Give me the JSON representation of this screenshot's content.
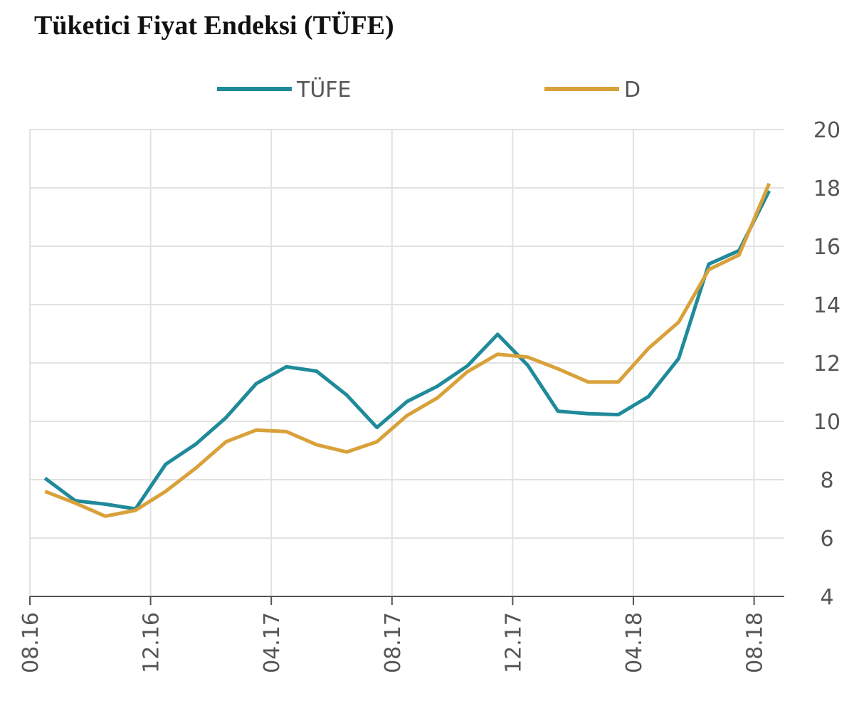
{
  "chart_data": {
    "type": "line",
    "title": "Tüketici Fiyat Endeksi (TÜFE)",
    "categories": [
      "08.16",
      null,
      null,
      null,
      "12.16",
      null,
      null,
      null,
      "04.17",
      null,
      null,
      null,
      "08.17",
      null,
      null,
      null,
      "12.17",
      null,
      null,
      null,
      "04.18",
      null,
      null,
      null,
      "08.18"
    ],
    "series": [
      {
        "name": "TÜFE",
        "color": "#1f8a9a",
        "values": [
          8.05,
          7.28,
          7.16,
          7.0,
          8.53,
          9.22,
          10.13,
          11.29,
          11.87,
          11.72,
          10.9,
          9.79,
          10.68,
          11.2,
          11.9,
          12.98,
          11.92,
          10.35,
          10.26,
          10.23,
          10.85,
          12.15,
          15.39,
          15.85,
          17.9
        ]
      },
      {
        "name": "D",
        "color": "#d9a13a",
        "values": [
          7.6,
          7.2,
          6.75,
          6.95,
          7.6,
          8.4,
          9.3,
          9.7,
          9.65,
          9.2,
          8.95,
          9.3,
          10.2,
          10.8,
          11.7,
          12.3,
          12.2,
          11.8,
          11.35,
          11.35,
          12.5,
          13.4,
          15.2,
          15.7,
          18.15
        ]
      }
    ],
    "ylim": [
      4,
      20
    ],
    "yticks": [
      4,
      6,
      8,
      10,
      12,
      14,
      16,
      18,
      20
    ],
    "grid": true
  }
}
